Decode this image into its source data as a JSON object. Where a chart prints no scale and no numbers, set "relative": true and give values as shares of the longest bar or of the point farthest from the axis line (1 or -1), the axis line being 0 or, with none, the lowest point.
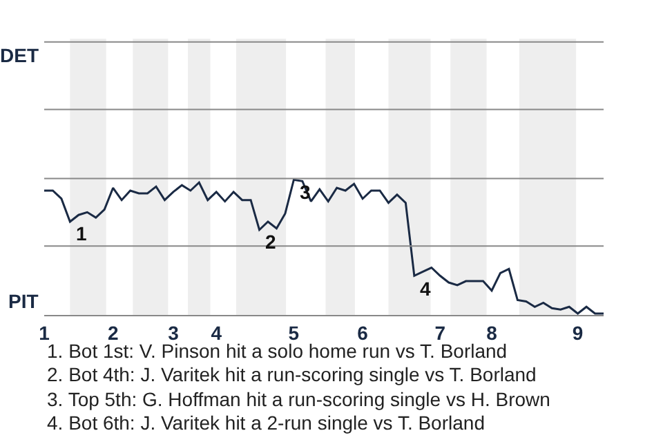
{
  "chart_data": {
    "type": "line",
    "relative": true,
    "categories": [
      "1",
      null,
      null,
      null,
      null,
      null,
      null,
      null,
      "2",
      null,
      null,
      null,
      null,
      null,
      null,
      "3",
      null,
      null,
      null,
      null,
      "4",
      null,
      null,
      null,
      null,
      null,
      null,
      null,
      null,
      "5",
      null,
      null,
      null,
      null,
      null,
      null,
      null,
      "6",
      null,
      null,
      null,
      null,
      null,
      null,
      null,
      null,
      "7",
      null,
      null,
      null,
      null,
      null,
      "8",
      null,
      null,
      null,
      null,
      null,
      null,
      null,
      null,
      null,
      "9",
      null,
      null,
      null
    ],
    "series": [
      {
        "color": "#1a2a44",
        "values": [
          0.92,
          0.92,
          0.86,
          0.69,
          0.74,
          0.76,
          0.72,
          0.78,
          0.94,
          0.85,
          0.92,
          0.9,
          0.9,
          0.95,
          0.85,
          0.91,
          0.96,
          0.92,
          0.98,
          0.85,
          0.91,
          0.84,
          0.91,
          0.85,
          0.85,
          0.63,
          0.69,
          0.64,
          0.75,
          1,
          0.99,
          0.84,
          0.93,
          0.84,
          0.94,
          0.92,
          0.97,
          0.86,
          0.92,
          0.92,
          0.83,
          0.89,
          0.83,
          0.29,
          0.32,
          0.35,
          0.29,
          0.24,
          0.22,
          0.25,
          0.25,
          0.25,
          0.18,
          0.31,
          0.34,
          0.11,
          0.1,
          0.06,
          0.09,
          0.05,
          0.04,
          0.06,
          0.01,
          0.06,
          0.01,
          0.01
        ]
      }
    ],
    "marker": "none",
    "line_style": "solid",
    "ref_lines": [
      {
        "axis": "y",
        "value": 2.02,
        "label": "DET",
        "color": "#888888"
      },
      {
        "axis": "y",
        "value": 1.52,
        "label": null,
        "color": "#888888"
      },
      {
        "axis": "y",
        "value": 1.01,
        "label": null,
        "color": "#888888"
      },
      {
        "axis": "y",
        "value": 0.51,
        "label": null,
        "color": "#888888"
      }
    ],
    "ylabel": "PIT",
    "annotations": [
      {
        "text": "1",
        "y": 0.69
      },
      {
        "text": "2",
        "y": 0.63
      },
      {
        "text": "3",
        "y": 1
      },
      {
        "text": "4",
        "y": 0.29
      },
      "1. Bot 1st: V. Pinson hit a solo home run vs T. Borland",
      "2. Bot 4th: J. Varitek hit a run-scoring single vs T. Borland",
      "3. Top 5th: G. Hoffman hit a run-scoring single vs H. Brown",
      "4. Bot 6th: J. Varitek hit a 2-run single vs T. Borland"
    ]
  }
}
